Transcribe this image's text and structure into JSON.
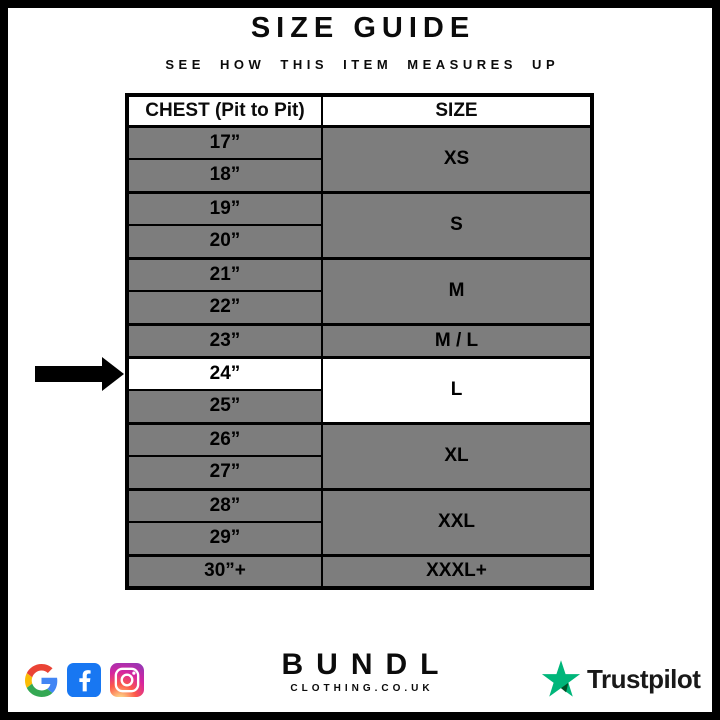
{
  "page": {
    "title": "SIZE GUIDE",
    "subtitle": "SEE HOW THIS ITEM MEASURES UP"
  },
  "chart_data": {
    "type": "table",
    "title": "SIZE GUIDE",
    "subtitle": "SEE HOW THIS ITEM MEASURES UP",
    "columns": [
      "CHEST (Pit to Pit)",
      "SIZE"
    ],
    "groups": [
      {
        "size": "XS",
        "chest": [
          "17”",
          "18”"
        ]
      },
      {
        "size": "S",
        "chest": [
          "19”",
          "20”"
        ]
      },
      {
        "size": "M",
        "chest": [
          "21”",
          "22”"
        ]
      },
      {
        "size": "M / L",
        "chest": [
          "23”"
        ]
      },
      {
        "size": "L",
        "chest": [
          "24”",
          "25”"
        ],
        "highlighted": true
      },
      {
        "size": "XL",
        "chest": [
          "26”",
          "27”"
        ]
      },
      {
        "size": "XXL",
        "chest": [
          "28”",
          "29”"
        ]
      },
      {
        "size": "XXXL+",
        "chest": [
          "30”+"
        ]
      }
    ],
    "selected": {
      "chest": "24”",
      "size": "L"
    },
    "layout_hints": {
      "row_fill": "gray",
      "highlighted_row_fill": "white",
      "grid": true
    }
  },
  "indicator": {
    "icon": "arrow-right-icon",
    "points_to_chest": "24”"
  },
  "footer": {
    "social_icons": [
      "google",
      "facebook",
      "instagram"
    ],
    "brand": {
      "name": "BUNDL",
      "domain": "CLOTHING.CO.UK"
    },
    "trustpilot": {
      "label": "Trustpilot"
    }
  },
  "colors": {
    "row_gray": "#7d7d7d",
    "highlight_white": "#ffffff",
    "border_black": "#000000",
    "trustpilot_green": "#00b67a",
    "trustpilot_dark_green": "#005128",
    "facebook_blue": "#1877f2",
    "google_blue": "#4285f4",
    "google_red": "#ea4335",
    "google_yellow": "#fbbc05",
    "google_green": "#34a853",
    "instagram_gradient": [
      "#fdf497",
      "#fd5949",
      "#d6249f",
      "#8a3ab9"
    ]
  }
}
